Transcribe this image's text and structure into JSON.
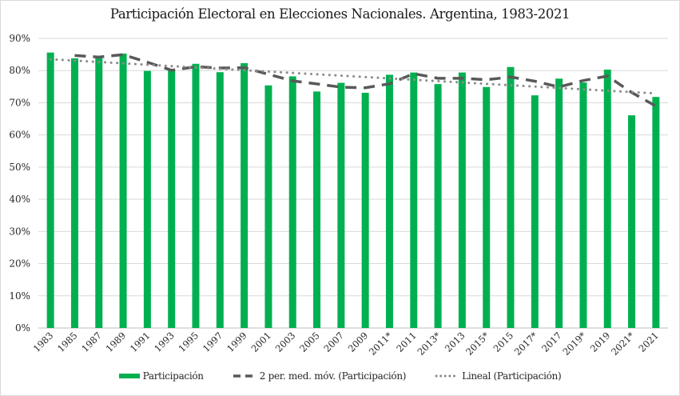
{
  "chart_data": {
    "type": "bar",
    "title": "Participación Electoral en Elecciones Nacionales. Argentina, 1983-2021",
    "xlabel": "",
    "ylabel": "",
    "ylim": [
      0,
      90
    ],
    "y_ticks": [
      "0%",
      "10%",
      "20%",
      "30%",
      "40%",
      "50%",
      "60%",
      "70%",
      "80%",
      "90%"
    ],
    "y_tick_values": [
      0,
      10,
      20,
      30,
      40,
      50,
      60,
      70,
      80,
      90
    ],
    "grid": true,
    "legend_position": "bottom",
    "categories": [
      "1983",
      "1985",
      "1987",
      "1989",
      "1991",
      "1993",
      "1995",
      "1997",
      "1999",
      "2001",
      "2003",
      "2005",
      "2007",
      "2009",
      "2011*",
      "2011",
      "2013*",
      "2013",
      "2015*",
      "2015",
      "2017*",
      "2017",
      "2019*",
      "2019",
      "2021*",
      "2021"
    ],
    "series": [
      {
        "name": "Participación",
        "kind": "bar",
        "color": "#00b050",
        "values": [
          85.6,
          83.8,
          84.6,
          85.3,
          79.9,
          80.3,
          82.1,
          79.5,
          82.3,
          75.4,
          78.2,
          73.5,
          76.2,
          73.1,
          78.7,
          79.4,
          75.8,
          79.4,
          74.9,
          81.1,
          72.3,
          77.5,
          76.3,
          80.3,
          66.1,
          71.8
        ]
      },
      {
        "name": "2 per. med. móv. (Participación)",
        "kind": "moving-average",
        "period": 2,
        "color": "#595959"
      },
      {
        "name": "Lineal (Participación)",
        "kind": "linear-trend",
        "color": "#8c8c8c"
      }
    ]
  }
}
